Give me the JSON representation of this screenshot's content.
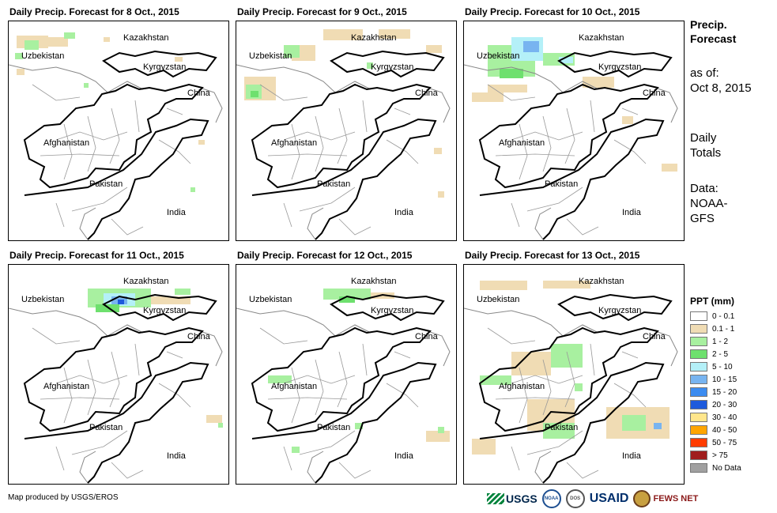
{
  "panels": [
    {
      "title": "Daily Precip. Forecast for 8 Oct., 2015",
      "day": "8"
    },
    {
      "title": "Daily Precip. Forecast for 9 Oct., 2015",
      "day": "9"
    },
    {
      "title": "Daily Precip. Forecast for 10 Oct., 2015",
      "day": "10"
    },
    {
      "title": "Daily Precip. Forecast for 11 Oct., 2015",
      "day": "11"
    },
    {
      "title": "Daily Precip. Forecast for 12 Oct., 2015",
      "day": "12"
    },
    {
      "title": "Daily Precip. Forecast for 13 Oct., 2015",
      "day": "13"
    }
  ],
  "map_labels": {
    "kazakhstan": "Kazakhstan",
    "uzbekistan": "Uzbekistan",
    "kyrgyzstan": "Kyrgyzstan",
    "china": "China",
    "afghanistan": "Afghanistan",
    "pakistan": "Pakistan",
    "india": "India"
  },
  "sidebar": {
    "title_line1": "Precip.",
    "title_line2": "Forecast",
    "asof_line1": "as of:",
    "asof_line2": "Oct 8, 2015",
    "totals_line1": "Daily",
    "totals_line2": "Totals",
    "data_line1": "Data:",
    "data_line2": "NOAA-",
    "data_line3": "GFS"
  },
  "legend": {
    "title": "PPT (mm)",
    "items": [
      {
        "label": "0 - 0.1",
        "color": "#ffffff"
      },
      {
        "label": "0.1 - 1",
        "color": "#f0dcb4"
      },
      {
        "label": "1 - 2",
        "color": "#a8f0a0"
      },
      {
        "label": "2 - 5",
        "color": "#6ee06e"
      },
      {
        "label": "5 - 10",
        "color": "#b4f0f8"
      },
      {
        "label": "10 - 15",
        "color": "#78b4f0"
      },
      {
        "label": "15 - 20",
        "color": "#3c8cf0"
      },
      {
        "label": "20 - 30",
        "color": "#1e5adc"
      },
      {
        "label": "30 - 40",
        "color": "#ffe68c"
      },
      {
        "label": "40 - 50",
        "color": "#ffa500"
      },
      {
        "label": "50 - 75",
        "color": "#ff3c00"
      },
      {
        "label": "> 75",
        "color": "#a01e1e"
      },
      {
        "label": "No Data",
        "color": "#a0a0a0"
      }
    ]
  },
  "footer": {
    "text": "Map produced by USGS/EROS"
  },
  "logos": {
    "usgs": "USGS",
    "noaa": "NOAA",
    "dos": "DOS",
    "usaid": "USAID",
    "fews": "FEWS NET"
  }
}
